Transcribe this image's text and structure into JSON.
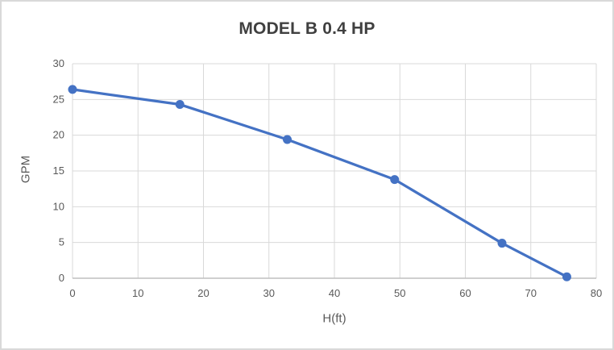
{
  "chart_data": {
    "type": "line",
    "title": "MODEL B 0.4 HP",
    "xlabel": "H(ft)",
    "ylabel": "GPM",
    "xlim": [
      0,
      80
    ],
    "ylim": [
      0,
      30
    ],
    "x_ticks": [
      0,
      10,
      20,
      30,
      40,
      50,
      60,
      70,
      80
    ],
    "y_ticks": [
      0,
      5,
      10,
      15,
      20,
      25,
      30
    ],
    "grid": true,
    "legend": "none",
    "series": [
      {
        "name": "GPM",
        "color": "#4472C4",
        "marker": "circle",
        "points": [
          {
            "x": 0,
            "y": 26.4
          },
          {
            "x": 16.4,
            "y": 24.3
          },
          {
            "x": 32.8,
            "y": 19.4
          },
          {
            "x": 49.2,
            "y": 13.8
          },
          {
            "x": 65.6,
            "y": 4.9
          },
          {
            "x": 75.5,
            "y": 0.2
          }
        ]
      }
    ]
  },
  "colors": {
    "accent": "#4472C4",
    "gridline": "#D9D9D9",
    "axis_line": "#BFBFBF",
    "tick_text": "#595959",
    "title_text": "#404040",
    "background": "#FFFFFF",
    "border": "#D9D9D9"
  }
}
